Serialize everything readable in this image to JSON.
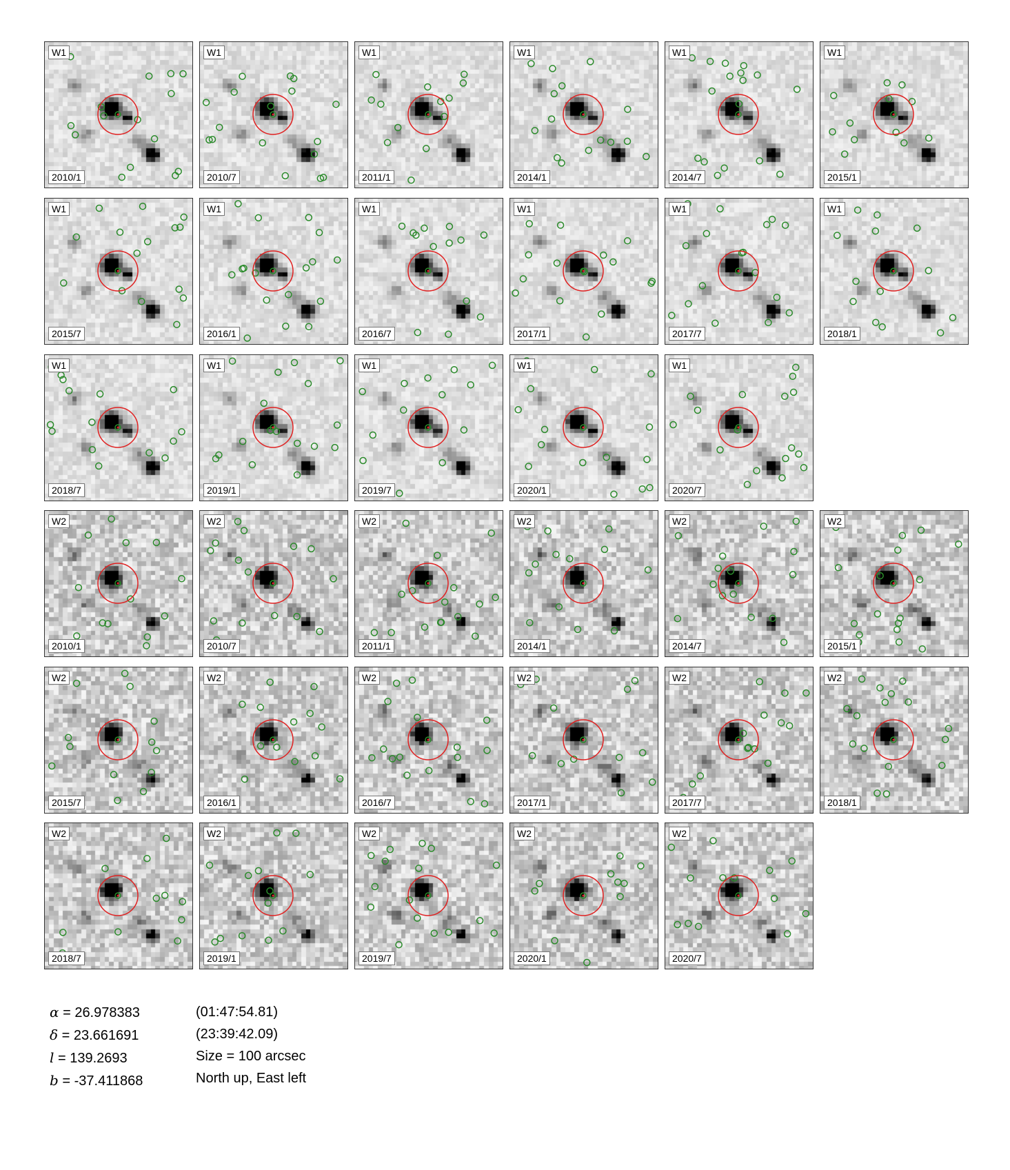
{
  "colors": {
    "aperture": "#e02020",
    "source_marker": "#2a8a2a",
    "frame": "#333333"
  },
  "panels": [
    {
      "band": "W1",
      "epoch": "2010/1"
    },
    {
      "band": "W1",
      "epoch": "2010/7"
    },
    {
      "band": "W1",
      "epoch": "2011/1"
    },
    {
      "band": "W1",
      "epoch": "2014/1"
    },
    {
      "band": "W1",
      "epoch": "2014/7"
    },
    {
      "band": "W1",
      "epoch": "2015/1"
    },
    {
      "band": "W1",
      "epoch": "2015/7"
    },
    {
      "band": "W1",
      "epoch": "2016/1"
    },
    {
      "band": "W1",
      "epoch": "2016/7"
    },
    {
      "band": "W1",
      "epoch": "2017/1"
    },
    {
      "band": "W1",
      "epoch": "2017/7"
    },
    {
      "band": "W1",
      "epoch": "2018/1"
    },
    {
      "band": "W1",
      "epoch": "2018/7"
    },
    {
      "band": "W1",
      "epoch": "2019/1"
    },
    {
      "band": "W1",
      "epoch": "2019/7"
    },
    {
      "band": "W1",
      "epoch": "2020/1"
    },
    {
      "band": "W1",
      "epoch": "2020/7"
    },
    {
      "band": "W2",
      "epoch": "2010/1"
    },
    {
      "band": "W2",
      "epoch": "2010/7"
    },
    {
      "band": "W2",
      "epoch": "2011/1"
    },
    {
      "band": "W2",
      "epoch": "2014/1"
    },
    {
      "band": "W2",
      "epoch": "2014/7"
    },
    {
      "band": "W2",
      "epoch": "2015/1"
    },
    {
      "band": "W2",
      "epoch": "2015/7"
    },
    {
      "band": "W2",
      "epoch": "2016/1"
    },
    {
      "band": "W2",
      "epoch": "2016/7"
    },
    {
      "band": "W2",
      "epoch": "2017/1"
    },
    {
      "band": "W2",
      "epoch": "2017/7"
    },
    {
      "band": "W2",
      "epoch": "2018/1"
    },
    {
      "band": "W2",
      "epoch": "2018/7"
    },
    {
      "band": "W2",
      "epoch": "2019/1"
    },
    {
      "band": "W2",
      "epoch": "2019/7"
    },
    {
      "band": "W2",
      "epoch": "2020/1"
    },
    {
      "band": "W2",
      "epoch": "2020/7"
    }
  ],
  "coordinates": {
    "alpha_symbol": "α",
    "alpha_value": "= 26.978383",
    "delta_symbol": "δ",
    "delta_value": "= 23.661691",
    "l_symbol": "l",
    "l_value": "= 139.2693",
    "b_symbol": "b",
    "b_value": "= -37.411868",
    "ra_sexagesimal": "(01:47:54.81)",
    "dec_sexagesimal": "(23:39:42.09)",
    "size": "Size = 100 arcsec",
    "orientation": "North up, East left"
  }
}
